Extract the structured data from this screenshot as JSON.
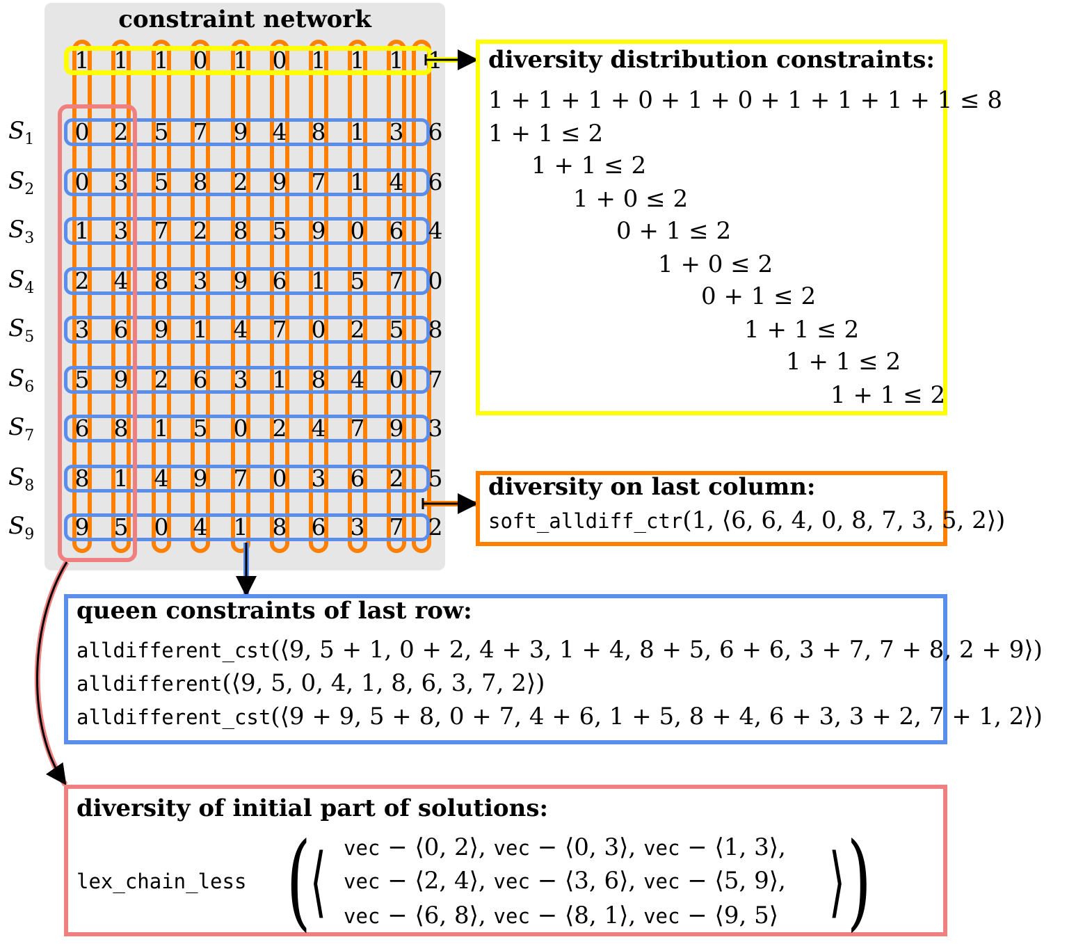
{
  "network": {
    "title": "constraint network",
    "distribution_row": [
      "1",
      "1",
      "1",
      "0",
      "1",
      "0",
      "1",
      "1",
      "1",
      "1"
    ],
    "rows": [
      {
        "label": "S",
        "sub": "1",
        "values": [
          "0",
          "2",
          "5",
          "7",
          "9",
          "4",
          "8",
          "1",
          "3",
          "6"
        ]
      },
      {
        "label": "S",
        "sub": "2",
        "values": [
          "0",
          "3",
          "5",
          "8",
          "2",
          "9",
          "7",
          "1",
          "4",
          "6"
        ]
      },
      {
        "label": "S",
        "sub": "3",
        "values": [
          "1",
          "3",
          "7",
          "2",
          "8",
          "5",
          "9",
          "0",
          "6",
          "4"
        ]
      },
      {
        "label": "S",
        "sub": "4",
        "values": [
          "2",
          "4",
          "8",
          "3",
          "9",
          "6",
          "1",
          "5",
          "7",
          "0"
        ]
      },
      {
        "label": "S",
        "sub": "5",
        "values": [
          "3",
          "6",
          "9",
          "1",
          "4",
          "7",
          "0",
          "2",
          "5",
          "8"
        ]
      },
      {
        "label": "S",
        "sub": "6",
        "values": [
          "5",
          "9",
          "2",
          "6",
          "3",
          "1",
          "8",
          "4",
          "0",
          "7"
        ]
      },
      {
        "label": "S",
        "sub": "7",
        "values": [
          "6",
          "8",
          "1",
          "5",
          "0",
          "2",
          "4",
          "7",
          "9",
          "3"
        ]
      },
      {
        "label": "S",
        "sub": "8",
        "values": [
          "8",
          "1",
          "4",
          "9",
          "7",
          "0",
          "3",
          "6",
          "2",
          "5"
        ]
      },
      {
        "label": "S",
        "sub": "9",
        "values": [
          "9",
          "5",
          "0",
          "4",
          "1",
          "8",
          "6",
          "3",
          "7",
          "2"
        ]
      }
    ]
  },
  "colors": {
    "yellow": "#ffff00",
    "orange": "#ff8000",
    "blue": "#5b8ded",
    "red": "#f08080",
    "network_bg": "#e6e6e6"
  },
  "distribution_panel": {
    "title": "diversity distribution constraints:",
    "lines": [
      "1 + 1 + 1 + 0 + 1 + 0 + 1 + 1 + 1 + 1 ≤ 8",
      "1 + 1 ≤ 2",
      "1 + 1 ≤ 2",
      "1 + 0 ≤ 2",
      "0 + 1 ≤ 2",
      "1 + 0 ≤ 2",
      "0 + 1 ≤ 2",
      "1 + 1 ≤ 2",
      "1 + 1 ≤ 2",
      "1 + 1 ≤ 2"
    ]
  },
  "last_column_panel": {
    "title": "diversity on last column:",
    "fn": "soft_alldiff_ctr",
    "args": "(1, ⟨6, 6, 4, 0, 8, 7, 3, 5, 2⟩)"
  },
  "queen_panel": {
    "title": "queen constraints of last row:",
    "lines": [
      {
        "fn": "alldifferent_cst",
        "args": "(⟨9, 5 + 1, 0 + 2, 4 + 3, 1 + 4, 8 + 5, 6 + 6, 3 + 7, 7 + 8, 2 + 9⟩)"
      },
      {
        "fn": "alldifferent",
        "args": "(⟨9, 5, 0, 4, 1, 8, 6, 3, 7, 2⟩)"
      },
      {
        "fn": "alldifferent_cst",
        "args": "(⟨9 + 9, 5 + 8, 0 + 7, 4 + 6, 1 + 5, 8 + 4, 6 + 3, 3 + 2, 7 + 1, 2⟩)"
      }
    ]
  },
  "initial_panel": {
    "title": "diversity of initial part of solutions:",
    "fn": "lex_chain_less",
    "lines": [
      [
        {
          "kw": "vec",
          "val": " − ⟨0, 2⟩, "
        },
        {
          "kw": "vec",
          "val": " − ⟨0, 3⟩, "
        },
        {
          "kw": "vec",
          "val": " − ⟨1, 3⟩,"
        }
      ],
      [
        {
          "kw": "vec",
          "val": " − ⟨2, 4⟩, "
        },
        {
          "kw": "vec",
          "val": " − ⟨3, 6⟩, "
        },
        {
          "kw": "vec",
          "val": " − ⟨5, 9⟩,"
        }
      ],
      [
        {
          "kw": "vec",
          "val": " − ⟨6, 8⟩, "
        },
        {
          "kw": "vec",
          "val": " − ⟨8, 1⟩, "
        },
        {
          "kw": "vec",
          "val": " − ⟨9, 5⟩"
        }
      ]
    ]
  }
}
